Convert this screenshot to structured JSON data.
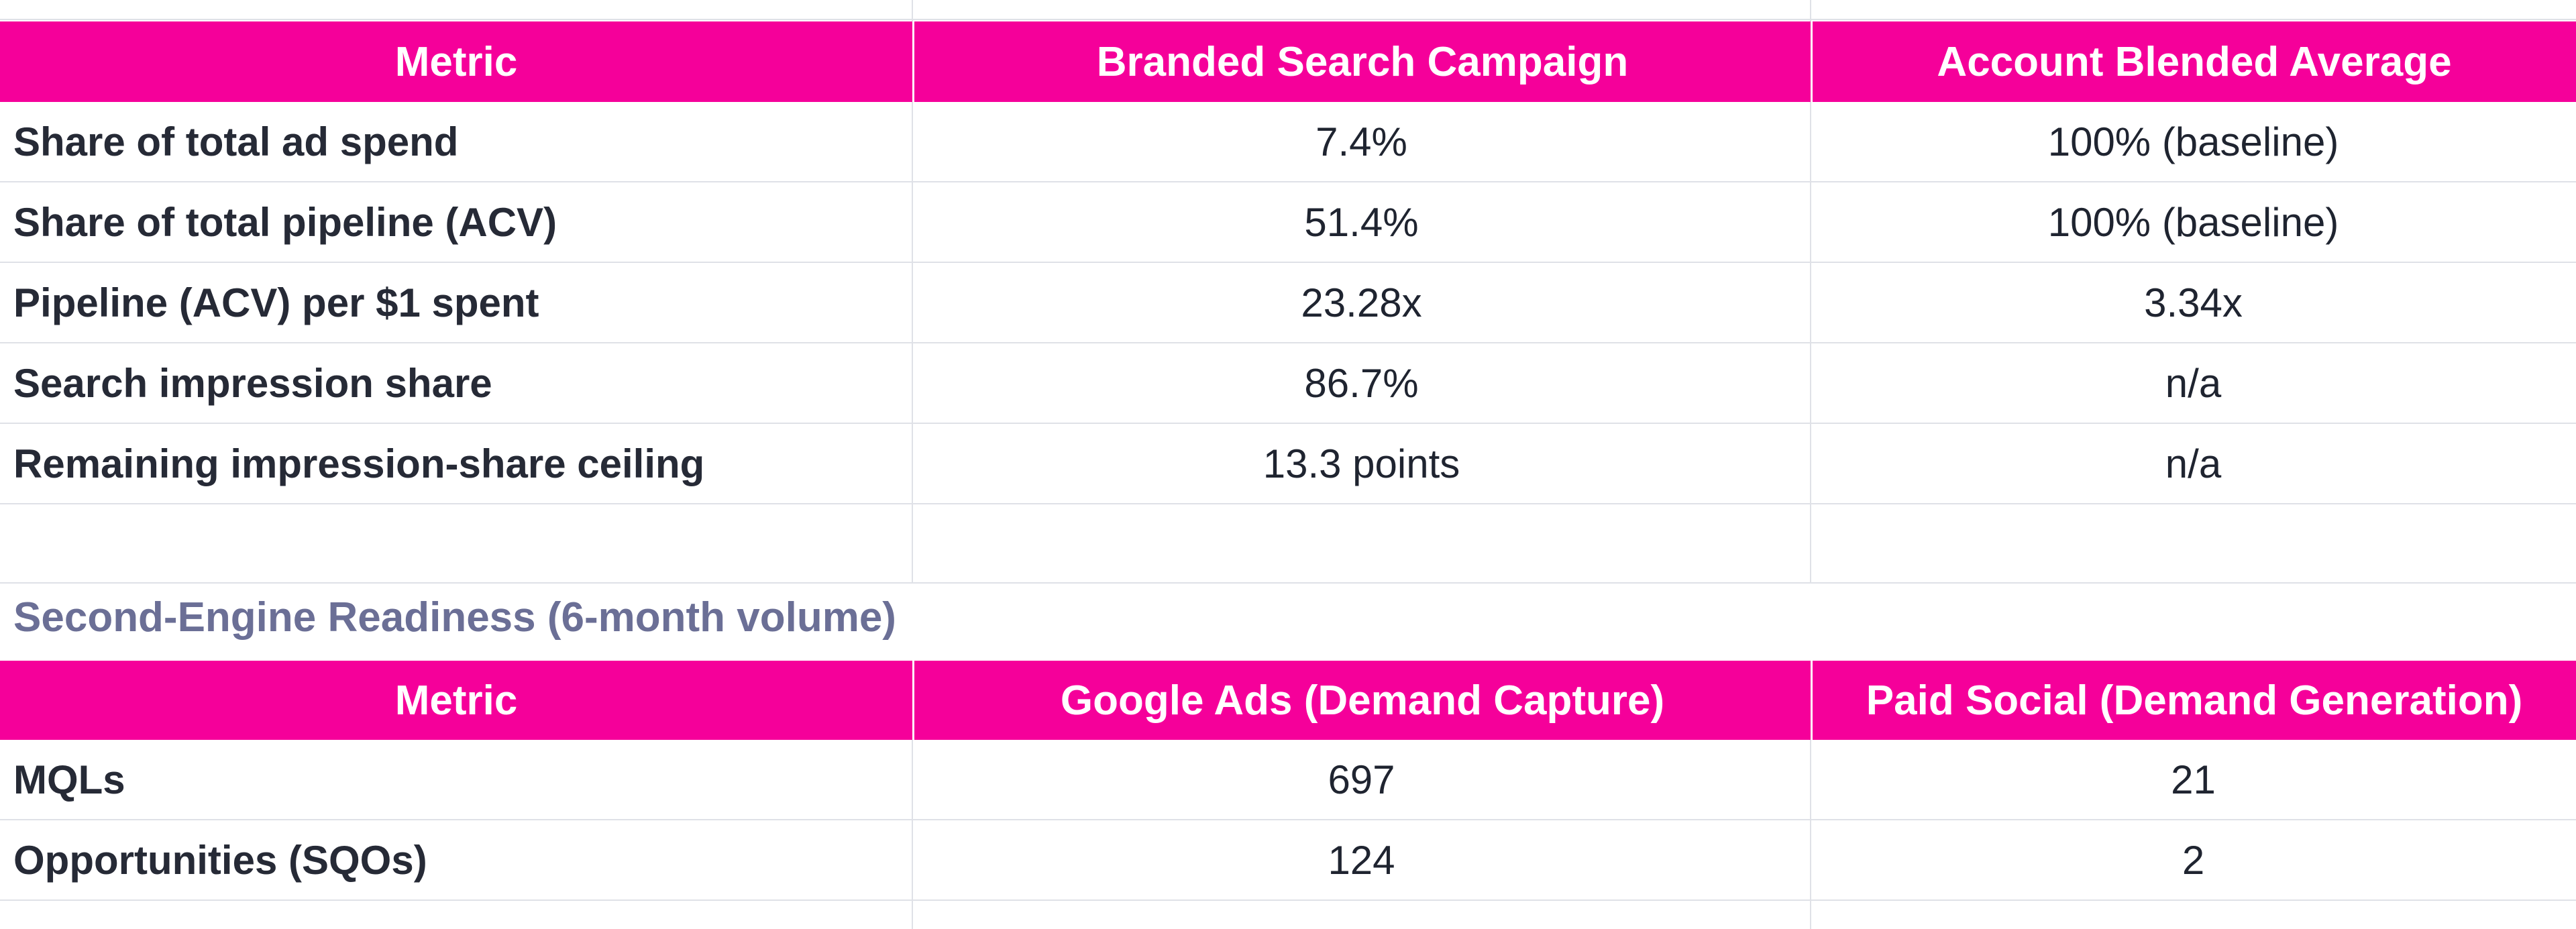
{
  "table1": {
    "headers": [
      "Metric",
      "Branded Search Campaign",
      "Account Blended Average"
    ],
    "rows": [
      [
        "Share of total ad spend",
        "7.4%",
        "100% (baseline)"
      ],
      [
        "Share of total pipeline (ACV)",
        "51.4%",
        "100% (baseline)"
      ],
      [
        "Pipeline (ACV) per $1 spent",
        "23.28x",
        "3.34x"
      ],
      [
        "Search impression share",
        "86.7%",
        "n/a"
      ],
      [
        "Remaining impression-share ceiling",
        "13.3 points",
        "n/a"
      ]
    ]
  },
  "section2": {
    "title": "Second-Engine Readiness (6-month volume)"
  },
  "table2": {
    "headers": [
      "Metric",
      "Google Ads (Demand Capture)",
      "Paid Social (Demand Generation)"
    ],
    "rows": [
      [
        "MQLs",
        "697",
        "21"
      ],
      [
        "Opportunities (SQOs)",
        "124",
        "2"
      ]
    ]
  },
  "colors": {
    "header_bg": "#f5009a",
    "header_text": "#ffffff",
    "section_title": "#6b6f96",
    "gridline": "#dfe1e7"
  }
}
